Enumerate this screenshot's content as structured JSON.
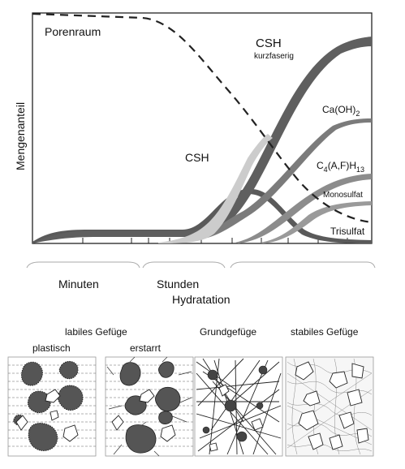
{
  "chart": {
    "ylabel": "Mengenanteil",
    "curve_labels": {
      "porenraum": "Porenraum",
      "csh_long": "CSH",
      "csh_long_sub": "kurzfaserig",
      "csh_short": "CSH",
      "caoh2_main": "Ca(OH)",
      "caoh2_sub": "2",
      "c4_a": "C",
      "c4_b": "4",
      "c4_c": "(A,F)H",
      "c4_d": "13",
      "monosulfat": "Monosulfat",
      "trisulfat": "Trisulfat"
    },
    "time_phases": [
      "Minuten",
      "Stunden"
    ],
    "xlabel": "Hydratation"
  },
  "structures": {
    "labiles": "labiles Gefüge",
    "plastisch": "plastisch",
    "erstarrt": "erstarrt",
    "grund": "Grundgefüge",
    "stabiles": "stabiles Gefüge"
  },
  "colors": {
    "dark_band": "#5f5f5f",
    "mid_band": "#8a8a8a",
    "light_band": "#c8c8c8",
    "line": "#222222"
  }
}
